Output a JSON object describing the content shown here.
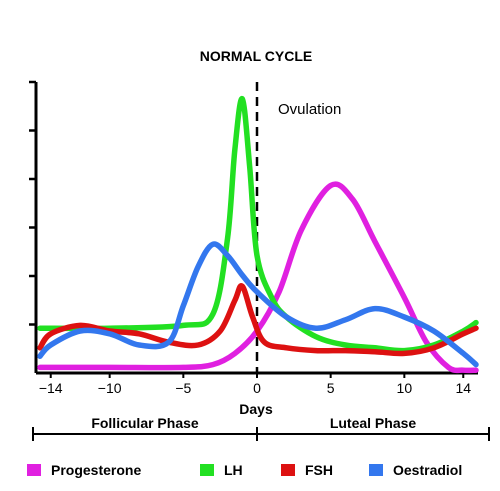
{
  "chart_data": {
    "type": "line",
    "title": "NORMAL CYCLE",
    "xlabel": "Days",
    "ylabel": "",
    "xlim": [
      -15,
      15
    ],
    "ylim": [
      0,
      5.2
    ],
    "x_ticks": [
      -14,
      -10,
      -5,
      0,
      5,
      10,
      14
    ],
    "y_tick_count": 6,
    "grid": false,
    "legend_position": "bottom",
    "annotation": "Ovulation",
    "ovulation_day": 0,
    "phases": [
      {
        "label": "Follicular Phase",
        "from": -15,
        "to": 0
      },
      {
        "label": "Luteal Phase",
        "from": 0,
        "to": 15
      }
    ],
    "series": [
      {
        "name": "Progesterone",
        "color": "#e020e0",
        "x": [
          -15,
          -10,
          -5,
          -3,
          -1.5,
          0,
          1.5,
          3,
          5,
          6.5,
          8,
          10,
          11.5,
          13,
          14,
          15
        ],
        "y": [
          0.1,
          0.1,
          0.1,
          0.15,
          0.35,
          0.75,
          1.45,
          2.55,
          3.35,
          3.1,
          2.35,
          1.35,
          0.55,
          0.1,
          0.05,
          0.05
        ]
      },
      {
        "name": "LH",
        "color": "#22e022",
        "x": [
          -15,
          -10,
          -5,
          -3,
          -2,
          -1.5,
          -1,
          -0.5,
          0,
          1,
          2,
          4,
          6,
          8,
          10,
          12,
          14,
          15
        ],
        "y": [
          0.8,
          0.8,
          0.85,
          1.05,
          2.4,
          4.0,
          4.9,
          3.7,
          2.1,
          1.35,
          1.0,
          0.65,
          0.5,
          0.45,
          0.4,
          0.5,
          0.75,
          0.9
        ]
      },
      {
        "name": "FSH",
        "color": "#dd1111",
        "x": [
          -15,
          -14,
          -12,
          -10,
          -8,
          -6,
          -4,
          -2.5,
          -1.5,
          -1,
          -0.3,
          0.5,
          2,
          4,
          6,
          8,
          10,
          12,
          14,
          15
        ],
        "y": [
          0.45,
          0.7,
          0.85,
          0.75,
          0.7,
          0.55,
          0.5,
          0.75,
          1.3,
          1.55,
          1.0,
          0.55,
          0.45,
          0.4,
          0.4,
          0.38,
          0.35,
          0.45,
          0.7,
          0.8
        ]
      },
      {
        "name": "Oestradiol",
        "color": "#3377ee",
        "x": [
          -15,
          -14,
          -12,
          -10,
          -8,
          -6,
          -5,
          -4,
          -3,
          -2,
          -1,
          0,
          2,
          4,
          6,
          8,
          10,
          12,
          14,
          15
        ],
        "y": [
          0.3,
          0.5,
          0.75,
          0.7,
          0.5,
          0.55,
          1.2,
          1.9,
          2.3,
          2.1,
          1.75,
          1.45,
          1.0,
          0.8,
          0.95,
          1.15,
          1.0,
          0.75,
          0.35,
          0.15
        ]
      }
    ]
  }
}
